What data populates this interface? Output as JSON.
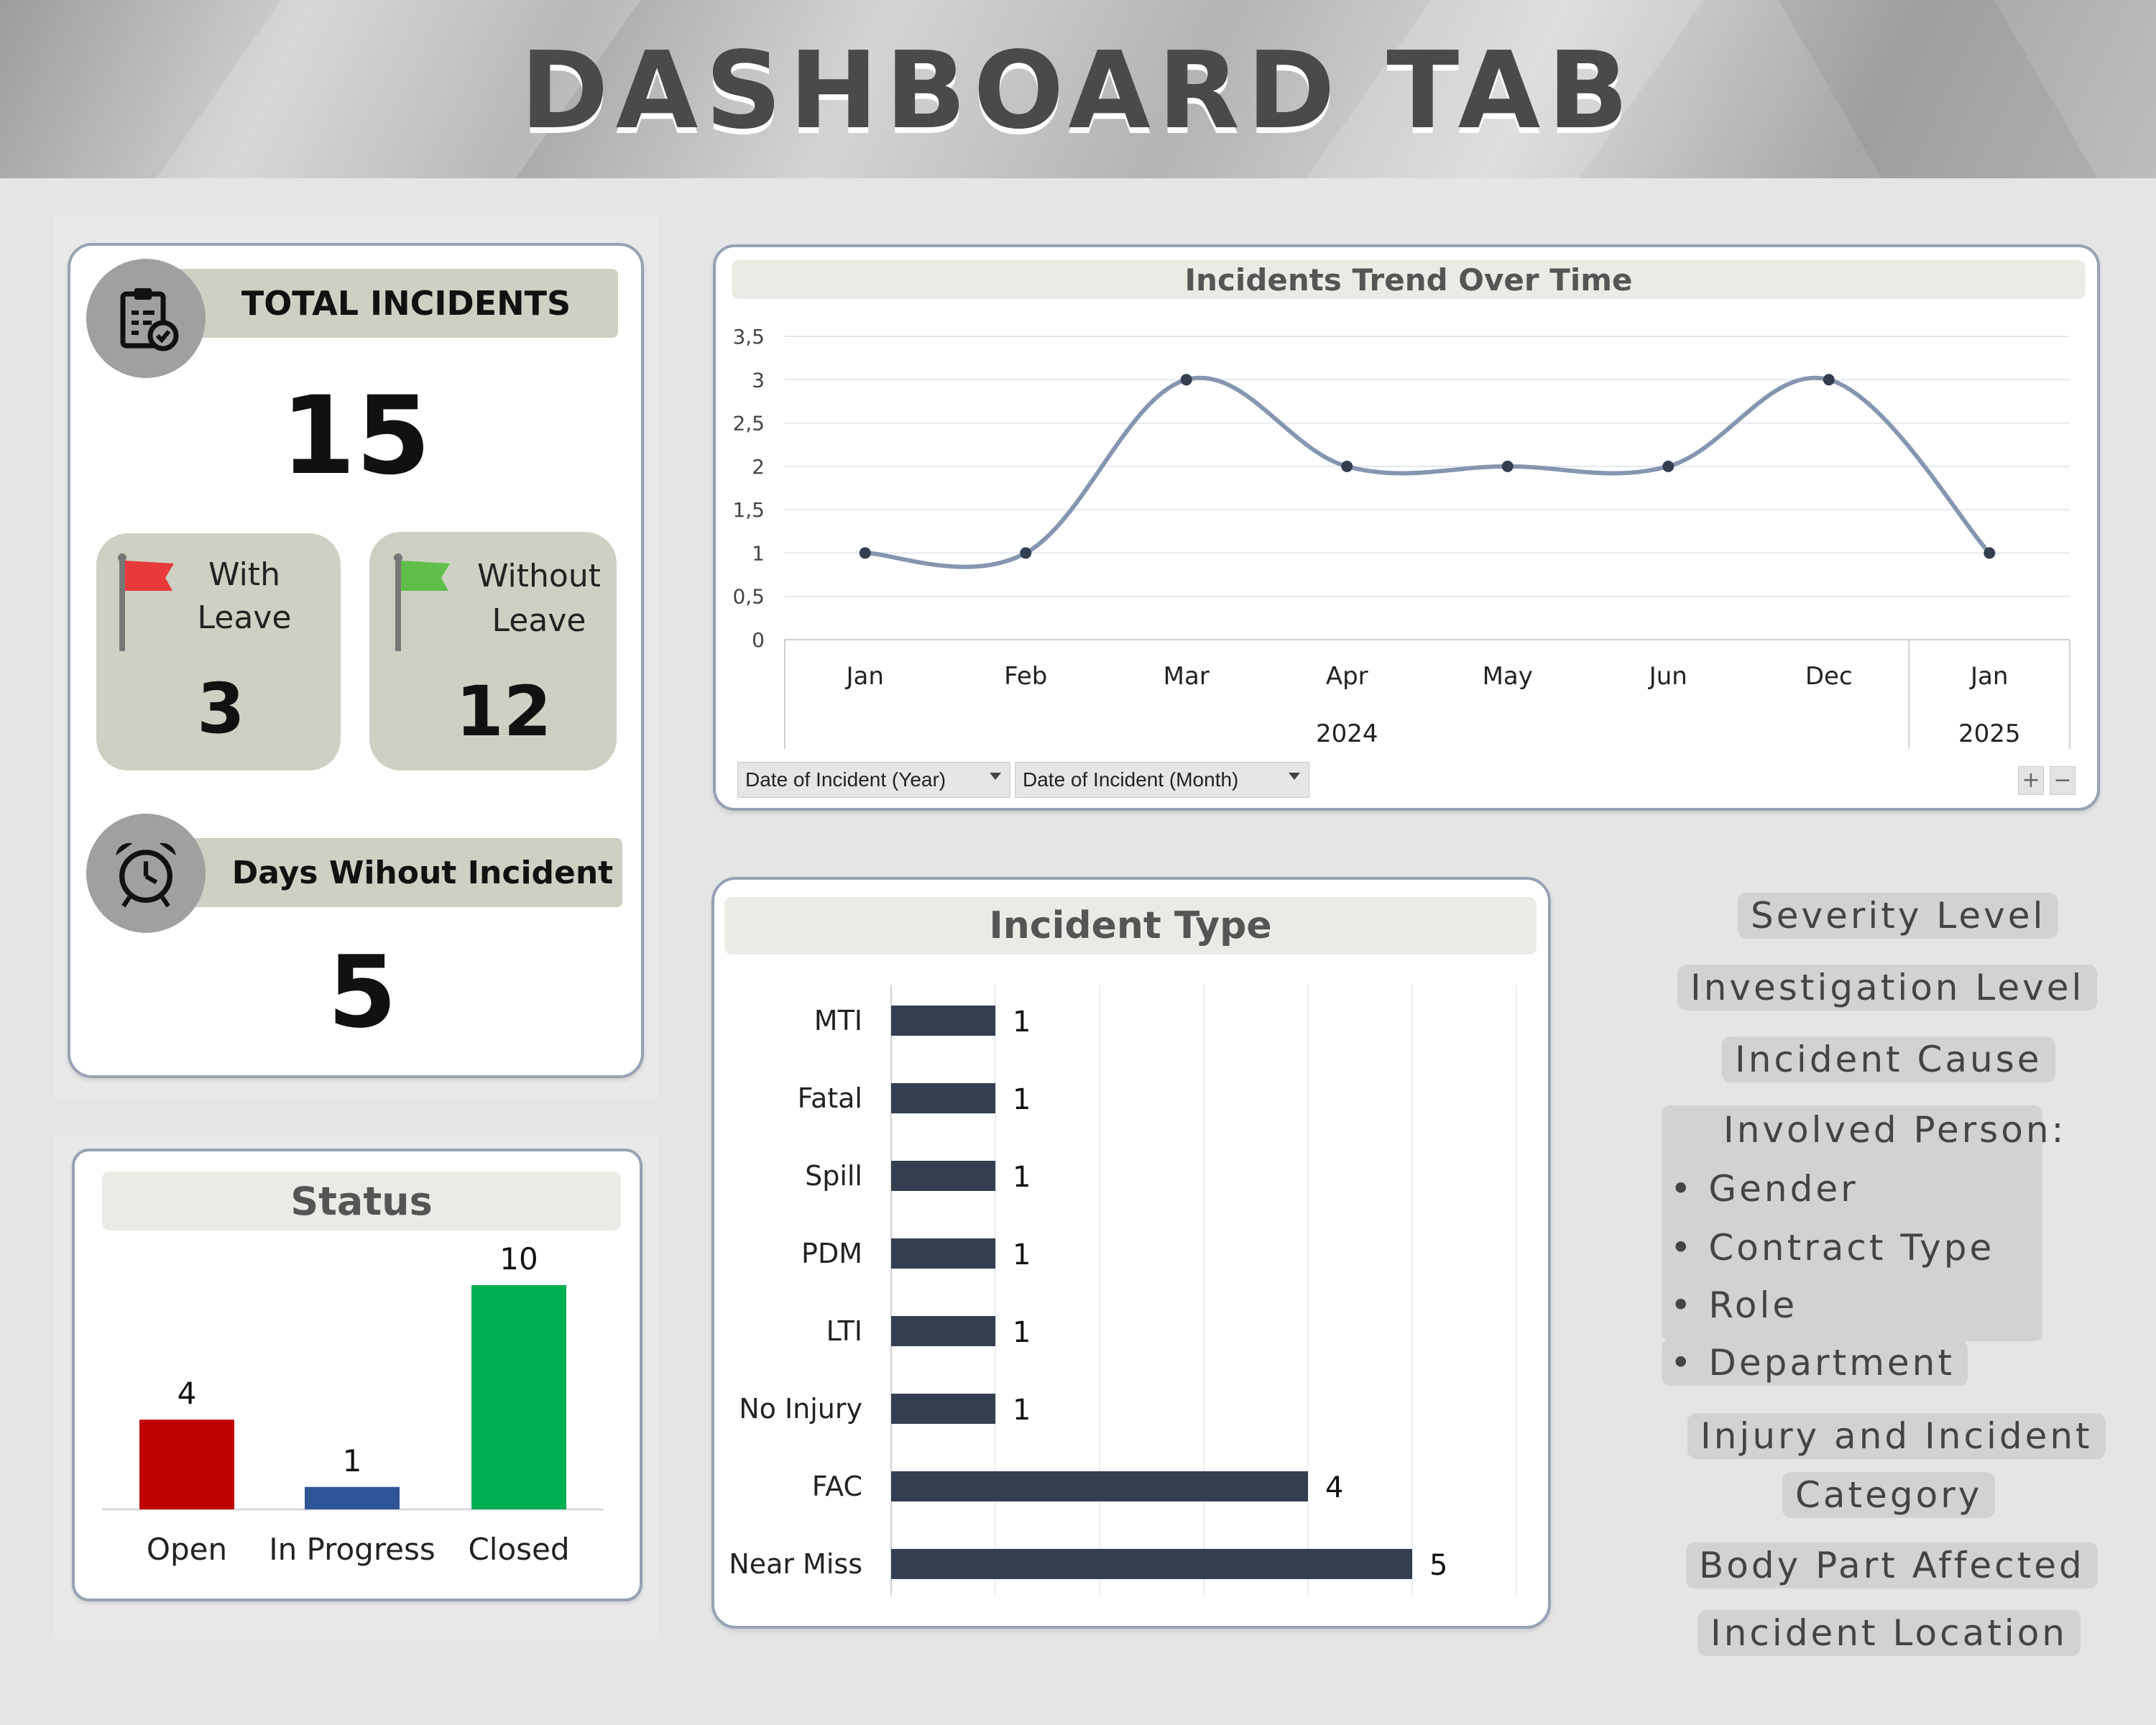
{
  "header": {
    "title": "DASHBOARD TAB"
  },
  "kpi": {
    "total_incidents": {
      "label": "TOTAL INCIDENTS",
      "value": "15",
      "icon": "clipboard-check-icon"
    },
    "with_leave": {
      "label_line1": "With",
      "label_line2": "Leave",
      "value": "3",
      "icon": "red-flag-icon",
      "flag_color": "#e83a3a"
    },
    "without_leave": {
      "label_line1": "Without",
      "label_line2": "Leave",
      "value": "12",
      "icon": "green-flag-icon",
      "flag_color": "#5fbf4a"
    },
    "days_without": {
      "label": "Days Wihout Incident",
      "value": "5",
      "icon": "alarm-clock-icon"
    }
  },
  "status_chart": {
    "title": "Status",
    "chart_data": {
      "type": "bar",
      "categories": [
        "Open",
        "In Progress",
        "Closed"
      ],
      "values": [
        4,
        1,
        10
      ],
      "colors": [
        "#c00000",
        "#2f5597",
        "#00b050"
      ],
      "value_labels": [
        "4",
        "1",
        "10"
      ]
    }
  },
  "trend_chart": {
    "title": "Incidents Trend Over Time",
    "filters": [
      "Date of Incident (Year)",
      "Date of Incident (Month)"
    ],
    "chart_data": {
      "type": "line",
      "x": [
        "Jan",
        "Feb",
        "Mar",
        "Apr",
        "May",
        "Jun",
        "Dec",
        "Jan"
      ],
      "year_groups": [
        {
          "label": "2024",
          "count": 7
        },
        {
          "label": "2025",
          "count": 1
        }
      ],
      "values": [
        1,
        1,
        3,
        2,
        2,
        2,
        3,
        1
      ],
      "ylim": [
        0,
        3.5
      ],
      "yticks": [
        "0",
        "0,5",
        "1",
        "1,5",
        "2",
        "2,5",
        "3",
        "3,5"
      ],
      "smooth": true,
      "line_color": "#8596b0",
      "grid": true
    }
  },
  "type_chart": {
    "title": "Incident Type",
    "chart_data": {
      "type": "bar",
      "orientation": "horizontal",
      "categories": [
        "MTI",
        "Fatal",
        "Spill",
        "PDM",
        "LTI",
        "No Injury",
        "FAC",
        "Near Miss"
      ],
      "values": [
        1,
        1,
        1,
        1,
        1,
        1,
        4,
        5
      ],
      "value_labels": [
        "1",
        "1",
        "1",
        "1",
        "1",
        "1",
        "4",
        "5"
      ],
      "color": "#333f50",
      "xlim": [
        0,
        6
      ]
    }
  },
  "filters_panel": {
    "severity": "Severity Level",
    "investigation": "Investigation  Level",
    "cause": "Incident Cause",
    "involved": "Involved Person:",
    "gender": "• Gender",
    "contract": "• Contract Type",
    "role": "• Role",
    "department": "• Department",
    "injury_line1": "Injury and Incident",
    "injury_line2": "Category",
    "body_part": "Body Part Affected",
    "location": "Incident Location"
  }
}
